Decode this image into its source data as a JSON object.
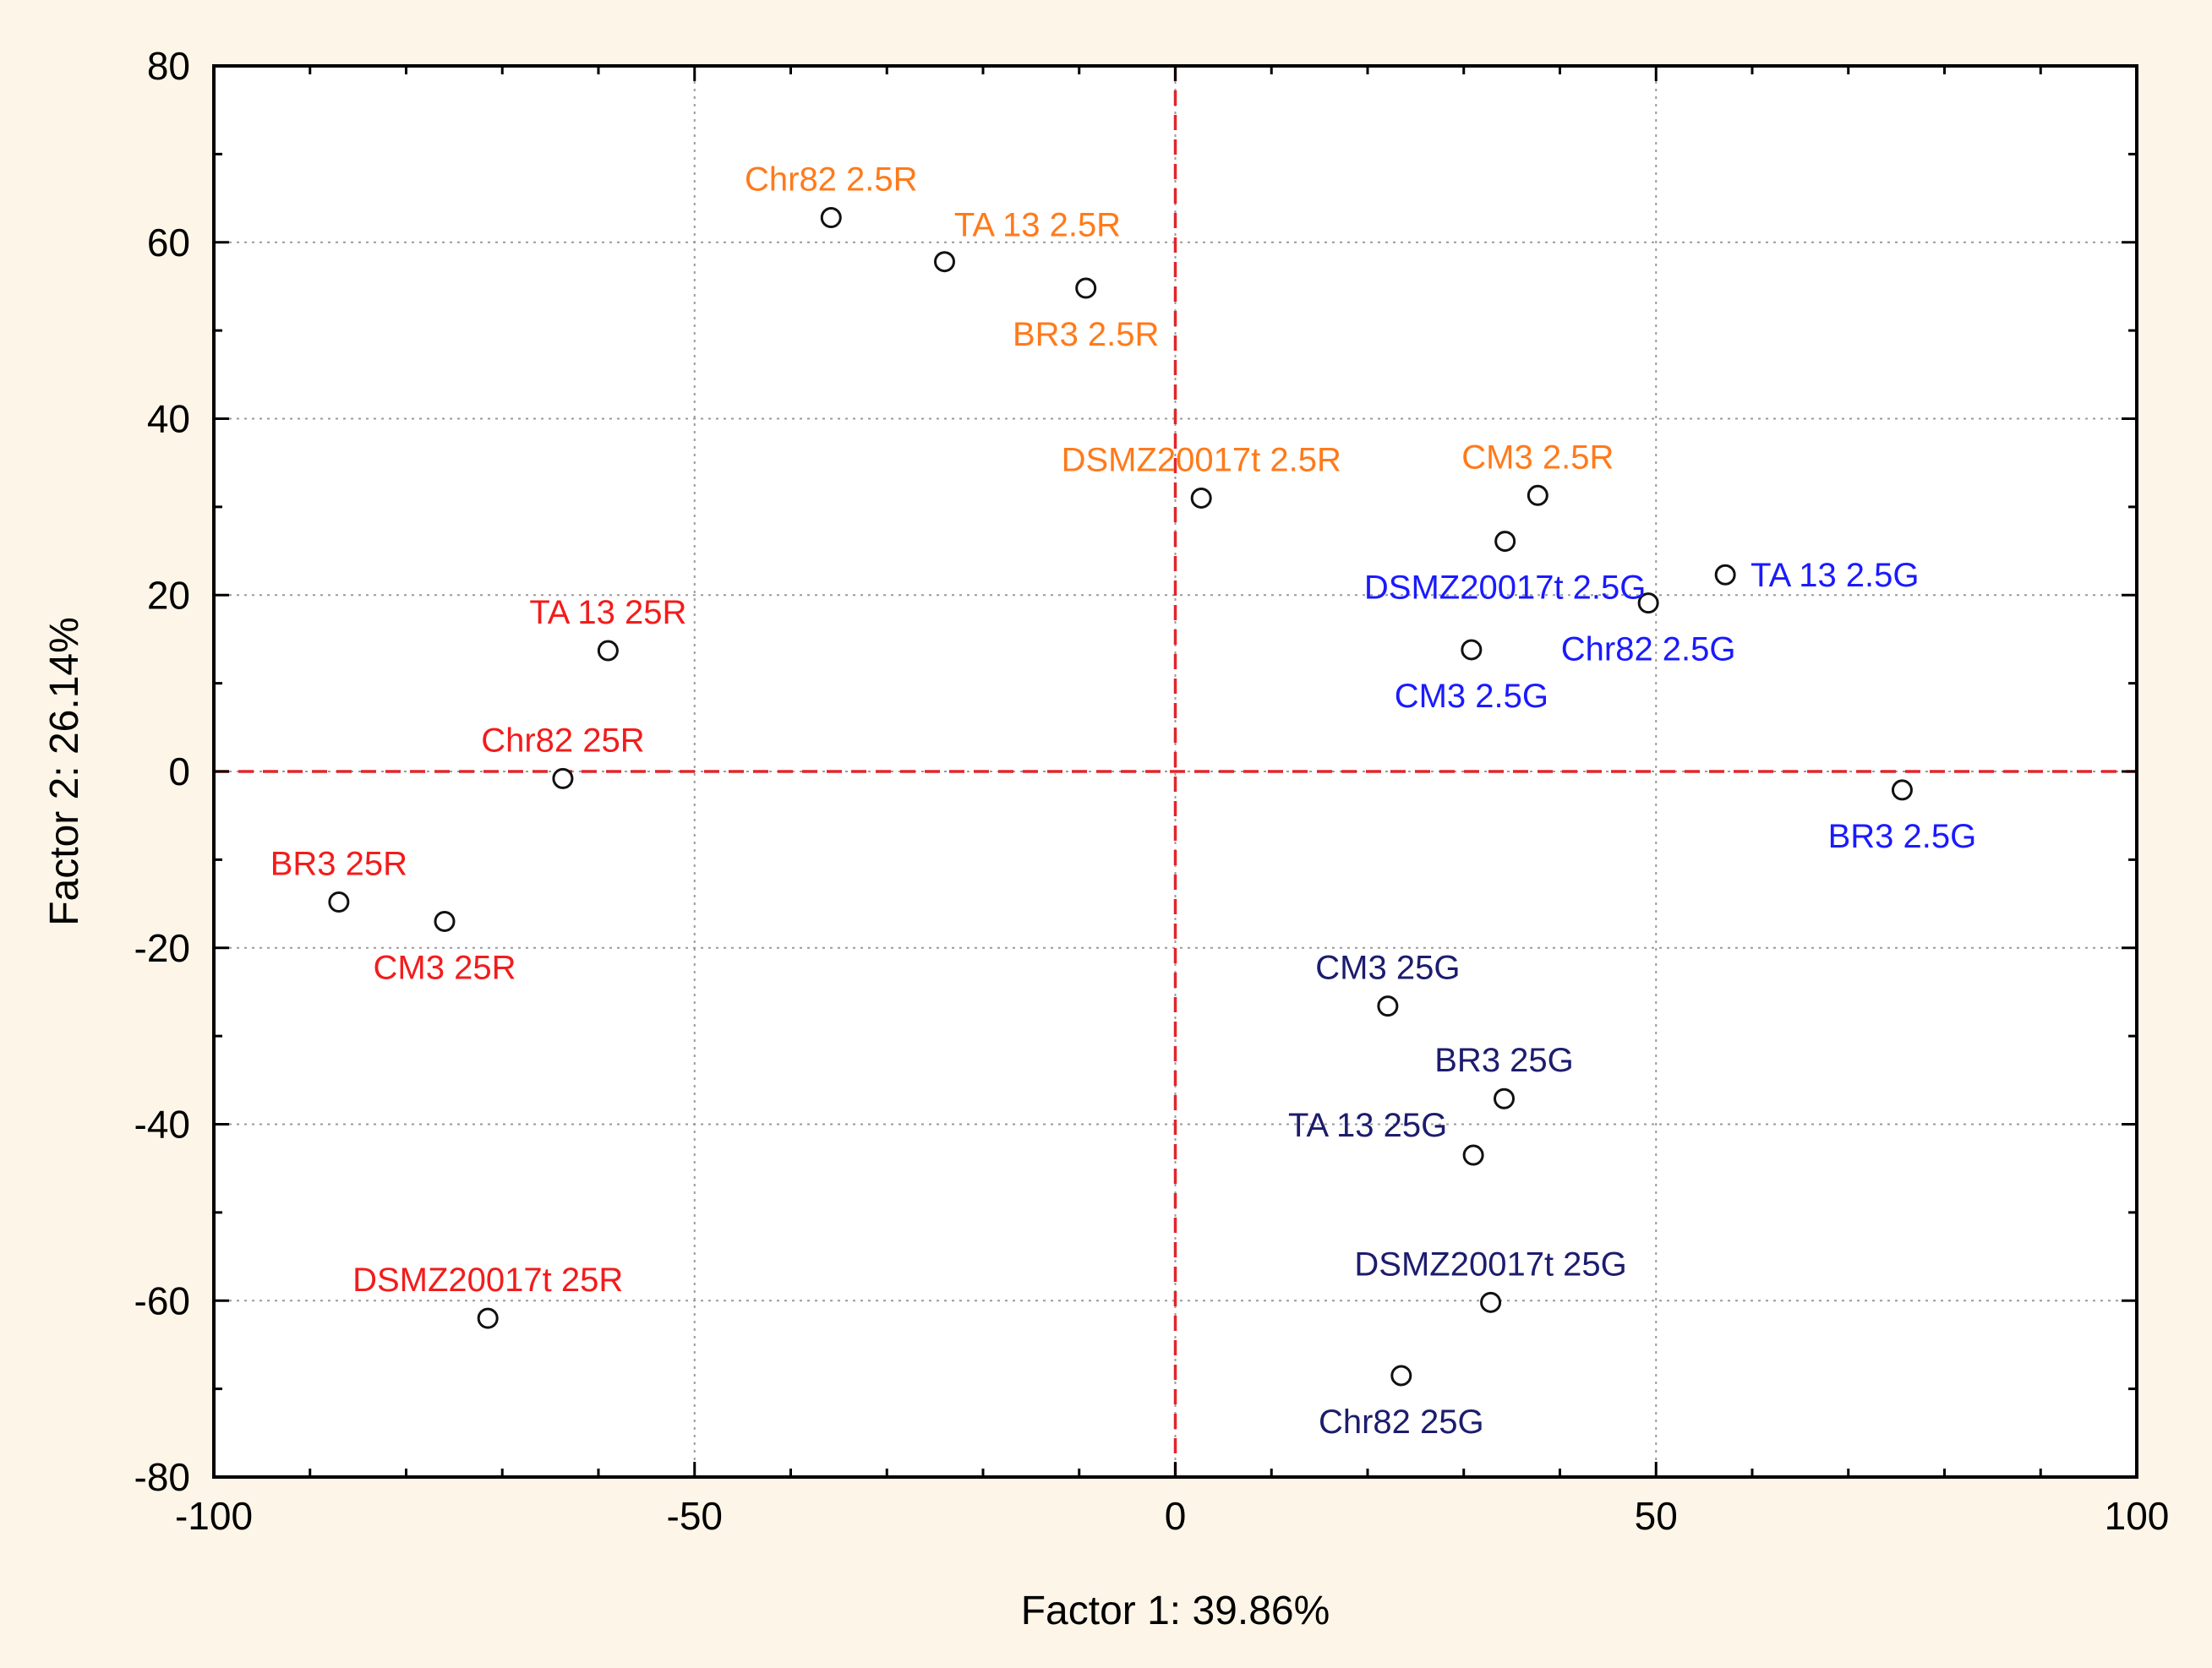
{
  "chart_data": {
    "type": "scatter",
    "title": "",
    "xlabel": "Factor 1: 39.86%",
    "ylabel": "Factor 2: 26.14%",
    "xlim": [
      -100,
      100
    ],
    "ylim": [
      -80,
      80
    ],
    "xticks": [
      -100,
      -50,
      0,
      50,
      100
    ],
    "yticks": [
      80,
      60,
      40,
      20,
      0,
      -20,
      -40,
      -60,
      -80
    ],
    "xtick_labels": [
      "-100",
      "-50",
      "0",
      "50",
      "100"
    ],
    "ytick_labels": [
      "80",
      "60",
      "40",
      "20",
      "0",
      "-20",
      "-40",
      "-60",
      "-80"
    ],
    "grid": true,
    "reference_lines": {
      "x": 0,
      "y": 0,
      "color": "#e0262b",
      "style": "dashed"
    },
    "colors": {
      "red": "#f21c1c",
      "orange": "#ff7a1a",
      "blue": "#1a1aff",
      "navy": "#1c1c6e"
    },
    "series": [
      {
        "name": "25R",
        "color": "#f21c1c",
        "points": [
          {
            "label": "TA 13 25R",
            "x": -59,
            "y": 13.7,
            "label_pos": "above"
          },
          {
            "label": "Chr82 25R",
            "x": -63.7,
            "y": -0.8,
            "label_pos": "above"
          },
          {
            "label": "BR3 25R",
            "x": -87,
            "y": -14.8,
            "label_pos": "above"
          },
          {
            "label": "CM3 25R",
            "x": -76,
            "y": -17,
            "label_pos": "below"
          },
          {
            "label": "DSMZ20017t 25R",
            "x": -71.5,
            "y": -62,
            "label_pos": "above"
          }
        ]
      },
      {
        "name": "2.5R",
        "color": "#ff7a1a",
        "points": [
          {
            "label": "Chr82 2.5R",
            "x": -35.8,
            "y": 62.8,
            "label_pos": "above"
          },
          {
            "label": "TA 13 2.5R",
            "x": -24,
            "y": 57.8,
            "label_pos": "above-right"
          },
          {
            "label": "BR3 2.5R",
            "x": -9.3,
            "y": 54.8,
            "label_pos": "below"
          },
          {
            "label": "DSMZ20017t 2.5R",
            "x": 2.7,
            "y": 31,
            "label_pos": "above"
          },
          {
            "label": "CM3 2.5R",
            "x": 37.7,
            "y": 31.3,
            "label_pos": "above"
          }
        ]
      },
      {
        "name": "2.5G",
        "color": "#1a1aff",
        "points": [
          {
            "label": "DSMZ20017t 2.5G",
            "x": 34.3,
            "y": 26.1,
            "label_pos": "below"
          },
          {
            "label": "TA 13 2.5G",
            "x": 57.2,
            "y": 22.3,
            "label_pos": "right"
          },
          {
            "label": "Chr82 2.5G",
            "x": 49.2,
            "y": 19.1,
            "label_pos": "below"
          },
          {
            "label": "CM3 2.5G",
            "x": 30.8,
            "y": 13.8,
            "label_pos": "below"
          },
          {
            "label": "BR3 2.5G",
            "x": 75.6,
            "y": -2.1,
            "label_pos": "below"
          }
        ]
      },
      {
        "name": "25G",
        "color": "#1c1c6e",
        "points": [
          {
            "label": "CM3 25G",
            "x": 22.1,
            "y": -26.6,
            "label_pos": "above"
          },
          {
            "label": "BR3 25G",
            "x": 34.2,
            "y": -37.1,
            "label_pos": "above"
          },
          {
            "label": "TA 13 25G",
            "x": 31,
            "y": -43.5,
            "label_pos": "above-left"
          },
          {
            "label": "DSMZ20017t 25G",
            "x": 32.8,
            "y": -60.2,
            "label_pos": "above"
          },
          {
            "label": "Chr82 25G",
            "x": 23.5,
            "y": -68.5,
            "label_pos": "below"
          }
        ]
      }
    ]
  }
}
